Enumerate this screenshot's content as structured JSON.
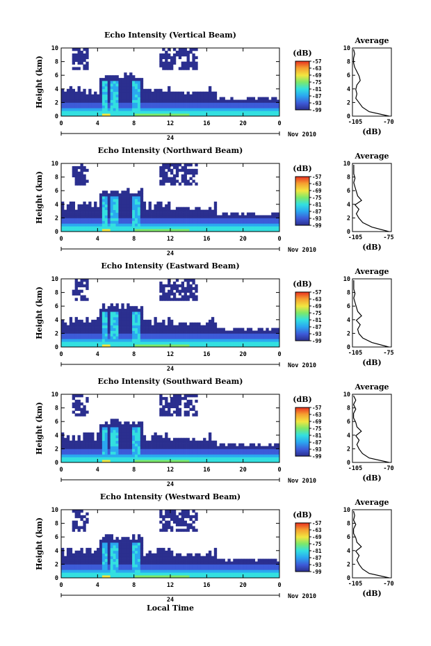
{
  "panels": [
    {
      "title": "Echo Intensity (Vertical Beam)",
      "ylabel": "Height (km)",
      "x_ticks": [
        "0",
        "4",
        "8",
        "12",
        "16",
        "20",
        "0"
      ],
      "y_ticks": [
        "0",
        "2",
        "4",
        "6",
        "8",
        "10"
      ],
      "date_day": "24",
      "date_month": "Nov 2010",
      "colorbar_unit": "(dB)",
      "colorbar_ticks": [
        "-57",
        "-63",
        "-69",
        "-75",
        "-81",
        "-87",
        "-93",
        "-99"
      ],
      "avg_title": "Average",
      "avg_xticks": [
        "-105",
        "-70"
      ],
      "avg_xlabel": "(dB)",
      "avg_xlim": [
        -105,
        -70
      ],
      "avg_profile": [
        -72,
        -90,
        -96,
        -99,
        -102,
        -101,
        -102,
        -101,
        -98,
        -99,
        -101,
        -103,
        -104,
        -104,
        -103,
        -104
      ]
    },
    {
      "title": "Echo Intensity (Northward Beam)",
      "ylabel": "Height (km)",
      "x_ticks": [
        "0",
        "4",
        "8",
        "12",
        "16",
        "20",
        "0"
      ],
      "y_ticks": [
        "0",
        "2",
        "4",
        "6",
        "8",
        "10"
      ],
      "date_day": "24",
      "date_month": "Nov 2010",
      "colorbar_unit": "(dB)",
      "colorbar_ticks": [
        "-57",
        "-63",
        "-69",
        "-75",
        "-81",
        "-87",
        "-93",
        "-99"
      ],
      "avg_title": "Average",
      "avg_xticks": [
        "-105",
        "-75"
      ],
      "avg_xlabel": "(dB)",
      "avg_xlim": [
        -105,
        -75
      ],
      "avg_profile": [
        -77,
        -90,
        -97,
        -100,
        -102,
        -100,
        -103,
        -98,
        -101,
        -102,
        -103,
        -104,
        -103,
        -104,
        -104,
        -104
      ]
    },
    {
      "title": "Echo Intensity (Eastward Beam)",
      "ylabel": "Height (km)",
      "x_ticks": [
        "0",
        "4",
        "8",
        "12",
        "16",
        "20",
        "0"
      ],
      "y_ticks": [
        "0",
        "2",
        "4",
        "6",
        "8",
        "10"
      ],
      "date_day": "24",
      "date_month": "Nov 2010",
      "colorbar_unit": "(dB)",
      "colorbar_ticks": [
        "-57",
        "-63",
        "-69",
        "-75",
        "-81",
        "-87",
        "-93",
        "-99"
      ],
      "avg_title": "Average",
      "avg_xticks": [
        "-105",
        "-75"
      ],
      "avg_xlabel": "(dB)",
      "avg_xlim": [
        -105,
        -75
      ],
      "avg_profile": [
        -77,
        -90,
        -97,
        -100,
        -101,
        -99,
        -102,
        -98,
        -101,
        -102,
        -103,
        -104,
        -103,
        -104,
        -104,
        -104
      ]
    },
    {
      "title": "Echo Intensity (Southward Beam)",
      "ylabel": "Height (km)",
      "x_ticks": [
        "0",
        "4",
        "8",
        "12",
        "16",
        "20",
        "0"
      ],
      "y_ticks": [
        "0",
        "2",
        "4",
        "6",
        "8",
        "10"
      ],
      "date_day": "24",
      "date_month": "Nov 2010",
      "colorbar_unit": "(dB)",
      "colorbar_ticks": [
        "-57",
        "-63",
        "-69",
        "-75",
        "-81",
        "-87",
        "-93",
        "-99"
      ],
      "avg_title": "Average",
      "avg_xticks": [
        "-105",
        "-70"
      ],
      "avg_xlabel": "(dB)",
      "avg_xlim": [
        -105,
        -70
      ],
      "avg_profile": [
        -72,
        -90,
        -96,
        -99,
        -101,
        -99,
        -102,
        -97,
        -101,
        -102,
        -104,
        -104,
        -102,
        -104,
        -102,
        -104
      ]
    },
    {
      "title": "Echo Intensity (Westward Beam)",
      "ylabel": "Height (km)",
      "x_ticks": [
        "0",
        "4",
        "8",
        "12",
        "16",
        "20",
        "0"
      ],
      "y_ticks": [
        "0",
        "2",
        "4",
        "6",
        "8",
        "10"
      ],
      "date_day": "24",
      "date_month": "Nov 2010",
      "colorbar_unit": "(dB)",
      "colorbar_ticks": [
        "-57",
        "-63",
        "-69",
        "-75",
        "-81",
        "-87",
        "-93",
        "-99"
      ],
      "avg_title": "Average",
      "avg_xticks": [
        "-105",
        "-70"
      ],
      "avg_xlabel": "(dB)",
      "avg_xlim": [
        -105,
        -70
      ],
      "avg_profile": [
        -72,
        -90,
        -96,
        -99,
        -101,
        -99,
        -102,
        -97,
        -101,
        -102,
        -104,
        -104,
        -102,
        -104,
        -103,
        -104
      ]
    }
  ],
  "footer": {
    "xlabel": "Local Time"
  },
  "chart_data": [
    {
      "type": "heatmap",
      "title": "Echo Intensity (Vertical Beam)",
      "ylabel": "Height (km)",
      "xlim_hours": [
        0,
        24
      ],
      "ylim_km": [
        0,
        10
      ],
      "colorbar_label": "(dB)",
      "colorbar_range": [
        -99,
        -57
      ],
      "colors": [
        "#2b2f8f",
        "#3d5bd8",
        "#2ba8f0",
        "#33e0e0",
        "#7de86a",
        "#f2e640",
        "#f5a030",
        "#e83020"
      ]
    },
    {
      "type": "line",
      "title": "Average",
      "xlabel": "(dB)",
      "ylabel": "Height (km)",
      "xlim": [
        -105,
        -70
      ],
      "ylim": [
        0,
        10
      ]
    },
    {
      "type": "heatmap",
      "title": "Echo Intensity (Northward Beam)",
      "ylabel": "Height (km)",
      "xlim_hours": [
        0,
        24
      ],
      "ylim_km": [
        0,
        10
      ],
      "colorbar_label": "(dB)",
      "colorbar_range": [
        -99,
        -57
      ]
    },
    {
      "type": "line",
      "title": "Average",
      "xlabel": "(dB)",
      "ylabel": "Height (km)",
      "xlim": [
        -105,
        -75
      ],
      "ylim": [
        0,
        10
      ]
    },
    {
      "type": "heatmap",
      "title": "Echo Intensity (Eastward Beam)",
      "ylabel": "Height (km)",
      "xlim_hours": [
        0,
        24
      ],
      "ylim_km": [
        0,
        10
      ],
      "colorbar_label": "(dB)",
      "colorbar_range": [
        -99,
        -57
      ]
    },
    {
      "type": "line",
      "title": "Average",
      "xlabel": "(dB)",
      "ylabel": "Height (km)",
      "xlim": [
        -105,
        -75
      ],
      "ylim": [
        0,
        10
      ]
    },
    {
      "type": "heatmap",
      "title": "Echo Intensity (Southward Beam)",
      "ylabel": "Height (km)",
      "xlim_hours": [
        0,
        24
      ],
      "ylim_km": [
        0,
        10
      ],
      "colorbar_label": "(dB)",
      "colorbar_range": [
        -99,
        -57
      ]
    },
    {
      "type": "line",
      "title": "Average",
      "xlabel": "(dB)",
      "ylabel": "Height (km)",
      "xlim": [
        -105,
        -70
      ],
      "ylim": [
        0,
        10
      ]
    },
    {
      "type": "heatmap",
      "title": "Echo Intensity (Westward Beam)",
      "ylabel": "Height (km)",
      "xlim_hours": [
        0,
        24
      ],
      "ylim_km": [
        0,
        10
      ],
      "colorbar_label": "(dB)",
      "colorbar_range": [
        -99,
        -57
      ]
    },
    {
      "type": "line",
      "title": "Average",
      "xlabel": "(dB)",
      "ylabel": "Height (km)",
      "xlim": [
        -105,
        -70
      ],
      "ylim": [
        0,
        10
      ]
    }
  ]
}
